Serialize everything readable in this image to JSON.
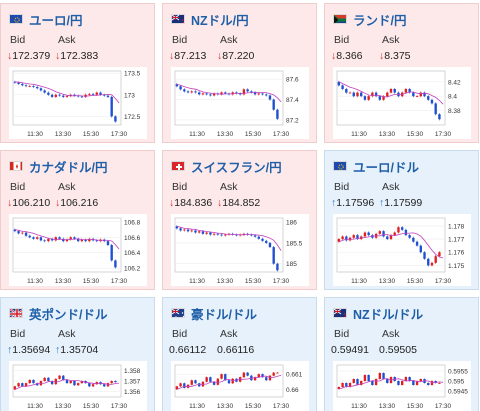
{
  "labels": {
    "bid": "Bid",
    "ask": "Ask"
  },
  "colors": {
    "down_arrow": "#d9302a",
    "up_arrow": "#2a7bd0",
    "candle_up": "#e02020",
    "candle_down": "#2050d0",
    "ma_line": "#c040c0"
  },
  "x_ticks": [
    "11:30",
    "13:30",
    "15:30",
    "17:30"
  ],
  "cards": [
    {
      "title": "ユーロ/円",
      "flag": "eu-flag-icon",
      "bid": "172.379",
      "ask": "172.383",
      "bid_dir": "down",
      "ask_dir": "down",
      "y_ticks": [
        "173.5",
        "173",
        "172.5"
      ],
      "y_range": [
        172.3,
        173.55
      ],
      "series": [
        173.3,
        173.28,
        173.25,
        173.22,
        173.2,
        173.2,
        173.18,
        173.15,
        173.1,
        173.05,
        173.0,
        172.95,
        173.0,
        172.98,
        172.95,
        172.97,
        173.0,
        172.98,
        172.96,
        172.95,
        173.0,
        173.02,
        173.0,
        173.05,
        173.0,
        172.98,
        172.95,
        172.5,
        172.38
      ]
    },
    {
      "title": "NZドル/円",
      "flag": "nz-flag-icon",
      "bid": "87.213",
      "ask": "87.220",
      "bid_dir": "down",
      "ask_dir": "down",
      "y_ticks": [
        "87.6",
        "87.4",
        "87.2"
      ],
      "y_range": [
        87.15,
        87.68
      ],
      "series": [
        87.55,
        87.53,
        87.5,
        87.48,
        87.47,
        87.48,
        87.47,
        87.45,
        87.46,
        87.45,
        87.44,
        87.46,
        87.45,
        87.47,
        87.46,
        87.45,
        87.47,
        87.46,
        87.45,
        87.5,
        87.48,
        87.47,
        87.45,
        87.46,
        87.45,
        87.44,
        87.4,
        87.3,
        87.21
      ]
    },
    {
      "title": "ランド/円",
      "flag": "za-flag-icon",
      "bid": "8.366",
      "ask": "8.375",
      "bid_dir": "down",
      "ask_dir": "down",
      "y_ticks": [
        "8.42",
        "8.4",
        "8.38"
      ],
      "y_range": [
        8.36,
        8.435
      ],
      "series": [
        8.42,
        8.415,
        8.41,
        8.405,
        8.405,
        8.4,
        8.405,
        8.4,
        8.395,
        8.4,
        8.405,
        8.4,
        8.395,
        8.4,
        8.405,
        8.41,
        8.405,
        8.4,
        8.405,
        8.41,
        8.405,
        8.4,
        8.4,
        8.405,
        8.4,
        8.395,
        8.39,
        8.375,
        8.368
      ]
    },
    {
      "title": "カナダドル/円",
      "flag": "ca-flag-icon",
      "bid": "106.210",
      "ask": "106.216",
      "bid_dir": "down",
      "ask_dir": "down",
      "y_ticks": [
        "106.8",
        "106.6",
        "106.4",
        "106.2"
      ],
      "y_range": [
        106.15,
        106.85
      ],
      "series": [
        106.7,
        106.68,
        106.65,
        106.66,
        106.62,
        106.6,
        106.58,
        106.6,
        106.56,
        106.55,
        106.58,
        106.56,
        106.6,
        106.58,
        106.55,
        106.57,
        106.6,
        106.58,
        106.55,
        106.57,
        106.55,
        106.58,
        106.56,
        106.55,
        106.57,
        106.55,
        106.5,
        106.3,
        106.21
      ]
    },
    {
      "title": "スイスフラン/円",
      "flag": "ch-flag-icon",
      "bid": "184.836",
      "ask": "184.852",
      "bid_dir": "down",
      "ask_dir": "down",
      "y_ticks": [
        "186",
        "185.5",
        "185"
      ],
      "y_range": [
        184.8,
        186.1
      ],
      "series": [
        185.9,
        185.85,
        185.8,
        185.82,
        185.78,
        185.8,
        185.75,
        185.78,
        185.72,
        185.75,
        185.7,
        185.72,
        185.7,
        185.68,
        185.7,
        185.72,
        185.7,
        185.68,
        185.7,
        185.72,
        185.7,
        185.68,
        185.65,
        185.6,
        185.55,
        185.5,
        185.4,
        185.0,
        184.84
      ]
    },
    {
      "title": "ユーロ/ドル",
      "flag": "eu-flag-icon",
      "bid": "1.17596",
      "ask": "1.17599",
      "bid_dir": "up",
      "ask_dir": "up",
      "y_ticks": [
        "1.178",
        "1.177",
        "1.176",
        "1.175"
      ],
      "y_range": [
        1.1745,
        1.1786
      ],
      "series": [
        1.1768,
        1.177,
        1.1772,
        1.1769,
        1.1771,
        1.1773,
        1.177,
        1.1772,
        1.1775,
        1.1773,
        1.1771,
        1.1774,
        1.1776,
        1.1772,
        1.177,
        1.1773,
        1.1775,
        1.1779,
        1.1777,
        1.1773,
        1.1771,
        1.1768,
        1.1765,
        1.176,
        1.1755,
        1.175,
        1.1752,
        1.1757,
        1.176
      ]
    },
    {
      "title": "英ポンド/ドル",
      "flag": "uk-flag-icon",
      "bid": "1.35694",
      "ask": "1.35704",
      "bid_dir": "up",
      "ask_dir": "up",
      "y_ticks": [
        "1.358",
        "1.357",
        "1.356"
      ],
      "y_range": [
        1.3555,
        1.3585
      ],
      "series": [
        1.3562,
        1.3565,
        1.3568,
        1.3565,
        1.3568,
        1.3571,
        1.3568,
        1.3566,
        1.357,
        1.3573,
        1.357,
        1.3567,
        1.3572,
        1.3575,
        1.3571,
        1.3568,
        1.357,
        1.3566,
        1.3568,
        1.357,
        1.3568,
        1.3565,
        1.3567,
        1.3569,
        1.3567,
        1.3565,
        1.3568,
        1.357,
        1.3569
      ]
    },
    {
      "title": "豪ドル/ドル",
      "flag": "au-flag-icon",
      "bid": "0.66112",
      "ask": "0.66116",
      "bid_dir": "",
      "ask_dir": "",
      "y_ticks": [
        "0.661",
        "0.66"
      ],
      "y_range": [
        0.6595,
        0.6616
      ],
      "series": [
        0.66,
        0.6602,
        0.6604,
        0.6601,
        0.6603,
        0.6606,
        0.6604,
        0.6602,
        0.6605,
        0.6608,
        0.6605,
        0.6603,
        0.6607,
        0.661,
        0.6606,
        0.6604,
        0.6607,
        0.6605,
        0.6608,
        0.6611,
        0.6609,
        0.6606,
        0.6608,
        0.661,
        0.6608,
        0.6606,
        0.6609,
        0.6611,
        0.6611
      ]
    },
    {
      "title": "NZドル/ドル",
      "flag": "nz-flag-icon",
      "bid": "0.59491",
      "ask": "0.59505",
      "bid_dir": "",
      "ask_dir": "",
      "y_ticks": [
        "0.5955",
        "0.595",
        "0.5945"
      ],
      "y_range": [
        0.5942,
        0.5958
      ],
      "series": [
        0.5946,
        0.5947,
        0.5949,
        0.5947,
        0.5949,
        0.5951,
        0.5948,
        0.595,
        0.5953,
        0.595,
        0.5948,
        0.5951,
        0.5954,
        0.5951,
        0.5949,
        0.5952,
        0.595,
        0.5948,
        0.595,
        0.5952,
        0.595,
        0.5948,
        0.595,
        0.5951,
        0.5949,
        0.5948,
        0.595,
        0.5949,
        0.5949
      ]
    }
  ]
}
